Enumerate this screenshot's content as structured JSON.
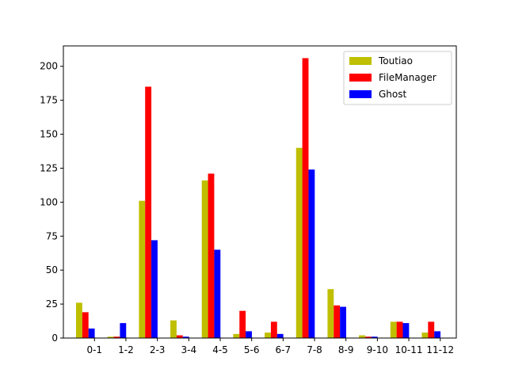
{
  "chart_data": {
    "type": "bar",
    "categories": [
      "0-1",
      "1-2",
      "2-3",
      "3-4",
      "4-5",
      "5-6",
      "6-7",
      "7-8",
      "8-9",
      "9-10",
      "10-11",
      "11-12"
    ],
    "series": [
      {
        "name": "Toutiao",
        "color": "#bfbf00",
        "values": [
          26,
          1,
          101,
          13,
          116,
          3,
          4,
          140,
          36,
          2,
          12,
          4
        ]
      },
      {
        "name": "FileManager",
        "color": "#ff0000",
        "values": [
          19,
          1,
          185,
          2,
          121,
          20,
          12,
          206,
          24,
          1,
          12,
          12
        ]
      },
      {
        "name": "Ghost",
        "color": "#0000ff",
        "values": [
          7,
          11,
          72,
          1,
          65,
          5,
          3,
          124,
          23,
          1,
          11,
          5
        ]
      }
    ],
    "yticks": [
      0,
      25,
      50,
      75,
      100,
      125,
      150,
      175,
      200
    ],
    "ylim": [
      0,
      215
    ],
    "grid": false,
    "legend_position": "top-right"
  }
}
